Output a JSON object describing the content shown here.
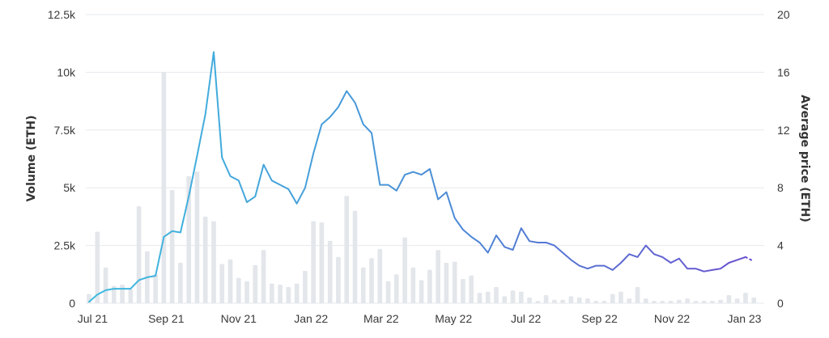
{
  "chart_data": {
    "type": "bar+line",
    "ylabel_left": "Volume (ETH)",
    "ylabel_right": "Average price (ETH)",
    "left_axis": {
      "min": 0,
      "max": 12500,
      "ticks": [
        0,
        2500,
        5000,
        7500,
        10000,
        12500
      ],
      "tick_labels": [
        "0",
        "2.5k",
        "5k",
        "7.5k",
        "10k",
        "12.5k"
      ]
    },
    "right_axis": {
      "min": 0,
      "max": 20,
      "ticks": [
        0,
        4,
        8,
        12,
        16,
        20
      ],
      "tick_labels": [
        "0",
        "4",
        "8",
        "12",
        "16",
        "20"
      ]
    },
    "x_axis": {
      "start": "2021-06-28",
      "end": "2023-01-15",
      "ticks": [
        "2021-07-01",
        "2021-09-01",
        "2021-11-01",
        "2022-01-01",
        "2022-03-01",
        "2022-05-01",
        "2022-07-01",
        "2022-09-01",
        "2022-11-01",
        "2023-01-01"
      ],
      "tick_labels": [
        "Jul 21",
        "Sep 21",
        "Nov 21",
        "Jan 22",
        "Mar 22",
        "May 22",
        "Jul 22",
        "Sep 22",
        "Nov 22",
        "Jan 23"
      ]
    },
    "grid": "horizontal",
    "bar_color": "#e3e6ea",
    "line_colors": {
      "start": "#3dbbe0",
      "mid": "#4a8fd6",
      "end": "#6a4fd0"
    },
    "weeks": [
      "2021-06-28",
      "2021-07-05",
      "2021-07-12",
      "2021-07-19",
      "2021-07-26",
      "2021-08-02",
      "2021-08-09",
      "2021-08-16",
      "2021-08-23",
      "2021-08-30",
      "2021-09-06",
      "2021-09-13",
      "2021-09-20",
      "2021-09-27",
      "2021-10-04",
      "2021-10-11",
      "2021-10-18",
      "2021-10-25",
      "2021-11-01",
      "2021-11-08",
      "2021-11-15",
      "2021-11-22",
      "2021-11-29",
      "2021-12-06",
      "2021-12-13",
      "2021-12-20",
      "2021-12-27",
      "2022-01-03",
      "2022-01-10",
      "2022-01-17",
      "2022-01-24",
      "2022-01-31",
      "2022-02-07",
      "2022-02-14",
      "2022-02-21",
      "2022-02-28",
      "2022-03-07",
      "2022-03-14",
      "2022-03-21",
      "2022-03-28",
      "2022-04-04",
      "2022-04-11",
      "2022-04-18",
      "2022-04-25",
      "2022-05-02",
      "2022-05-09",
      "2022-05-16",
      "2022-05-23",
      "2022-05-30",
      "2022-06-06",
      "2022-06-13",
      "2022-06-20",
      "2022-06-27",
      "2022-07-04",
      "2022-07-11",
      "2022-07-18",
      "2022-07-25",
      "2022-08-01",
      "2022-08-08",
      "2022-08-15",
      "2022-08-22",
      "2022-08-29",
      "2022-09-05",
      "2022-09-12",
      "2022-09-19",
      "2022-09-26",
      "2022-10-03",
      "2022-10-10",
      "2022-10-17",
      "2022-10-24",
      "2022-10-31",
      "2022-11-07",
      "2022-11-14",
      "2022-11-21",
      "2022-11-28",
      "2022-12-05",
      "2022-12-12",
      "2022-12-19",
      "2022-12-26",
      "2023-01-02",
      "2023-01-09"
    ],
    "volume": [
      400,
      3100,
      1550,
      750,
      800,
      600,
      4200,
      2250,
      1250,
      10000,
      4900,
      1750,
      5500,
      5700,
      3750,
      3550,
      1700,
      1900,
      1100,
      950,
      1650,
      2300,
      850,
      800,
      700,
      850,
      1400,
      3550,
      3500,
      2700,
      2000,
      4650,
      4000,
      1550,
      1950,
      2350,
      950,
      1250,
      2850,
      1550,
      1000,
      1450,
      2300,
      1750,
      1800,
      1050,
      1200,
      450,
      500,
      700,
      300,
      550,
      500,
      250,
      100,
      350,
      150,
      150,
      300,
      250,
      200,
      100,
      100,
      400,
      500,
      200,
      700,
      200,
      100,
      100,
      100,
      150,
      200,
      100,
      100,
      100,
      150,
      350,
      200,
      450,
      250
    ],
    "avg_price": [
      0.1,
      0.6,
      0.9,
      1.0,
      1.0,
      1.0,
      1.6,
      1.8,
      1.9,
      4.6,
      5.0,
      4.9,
      7.4,
      10.2,
      13.1,
      17.4,
      10.1,
      8.8,
      8.5,
      7.0,
      7.4,
      9.6,
      8.5,
      8.2,
      7.9,
      6.9,
      8.0,
      10.4,
      12.4,
      12.9,
      13.6,
      14.7,
      13.9,
      12.4,
      11.8,
      8.2,
      8.2,
      7.8,
      8.9,
      9.1,
      8.9,
      9.3,
      7.2,
      7.7,
      5.9,
      5.1,
      4.6,
      4.2,
      3.5,
      4.7,
      3.9,
      3.7,
      5.2,
      4.3,
      4.2,
      4.2,
      4.0,
      3.5,
      3.0,
      2.6,
      2.4,
      2.6,
      2.6,
      2.3,
      2.8,
      3.4,
      3.2,
      4.0,
      3.4,
      3.2,
      2.8,
      3.1,
      2.4,
      2.4,
      2.2,
      2.3,
      2.4,
      2.8,
      3.0,
      3.2,
      2.9
    ]
  }
}
